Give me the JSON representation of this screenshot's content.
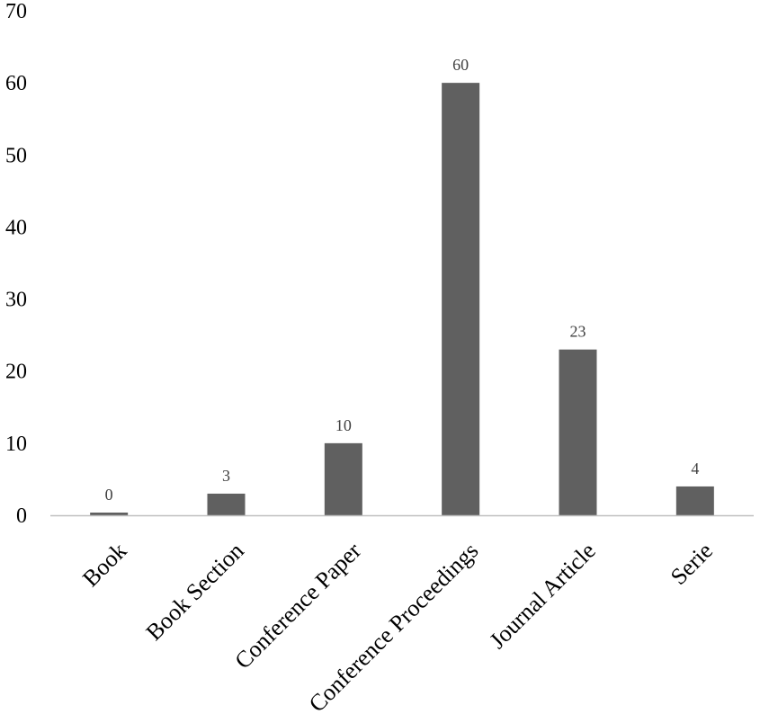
{
  "chart_data": {
    "type": "bar",
    "categories": [
      "Book",
      "Book Section",
      "Conference Paper",
      "Conference Proceedings",
      "Journal Article",
      "Serie"
    ],
    "values": [
      0,
      3,
      10,
      60,
      23,
      4
    ],
    "data_labels": [
      "0",
      "3",
      "10",
      "60",
      "23",
      "4"
    ],
    "title": "",
    "xlabel": "",
    "ylabel": "",
    "ylim": [
      0,
      70
    ],
    "yticks": [
      "0",
      "10",
      "20",
      "30",
      "40",
      "50",
      "60",
      "70"
    ],
    "grid": false,
    "legend": "none",
    "bar_color": "#606060",
    "axis_color": "#bfbfbf"
  }
}
